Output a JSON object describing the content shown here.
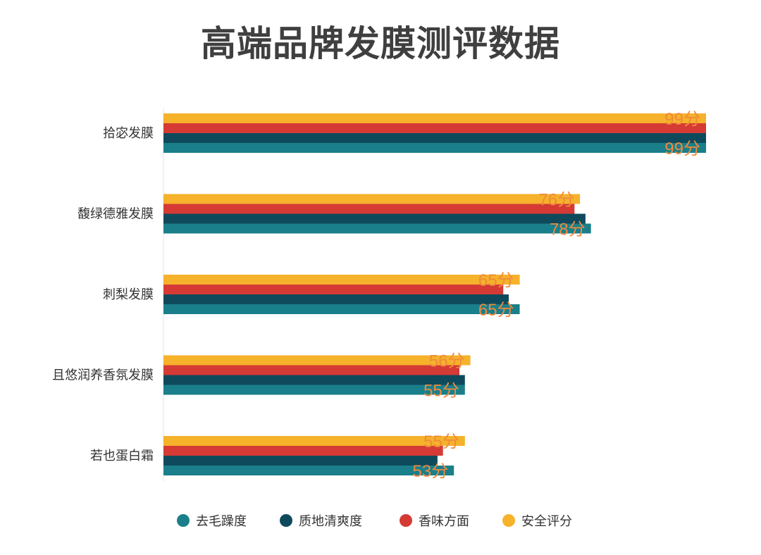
{
  "chart_data": {
    "type": "bar",
    "orientation": "horizontal",
    "title": "高端品牌发膜测评数据",
    "categories": [
      "拾宓发膜",
      "馥绿德雅发膜",
      "刺梨发膜",
      "且悠润养香氛发膜",
      "若也蛋白霜"
    ],
    "value_suffix": "分",
    "xlim": [
      0,
      100
    ],
    "grid": false,
    "legend_position": "bottom",
    "series": [
      {
        "name": "去毛躁度",
        "color": "#1a7f8a",
        "values": [
          99,
          78,
          65,
          55,
          53
        ]
      },
      {
        "name": "质地清爽度",
        "color": "#0f4a5c",
        "values": [
          99,
          77,
          63,
          55,
          50
        ]
      },
      {
        "name": "香味方面",
        "color": "#d63a35",
        "values": [
          99,
          75,
          62,
          54,
          51
        ]
      },
      {
        "name": "安全评分",
        "color": "#f5b22a",
        "values": [
          99,
          76,
          65,
          56,
          55
        ]
      }
    ],
    "data_labels": [
      {
        "series": 3,
        "values": [
          "99分",
          "76分",
          "65分",
          "56分",
          "55分"
        ]
      },
      {
        "series": 0,
        "values": [
          "99分",
          "78分",
          "65分",
          "55分",
          "53分"
        ]
      }
    ]
  }
}
